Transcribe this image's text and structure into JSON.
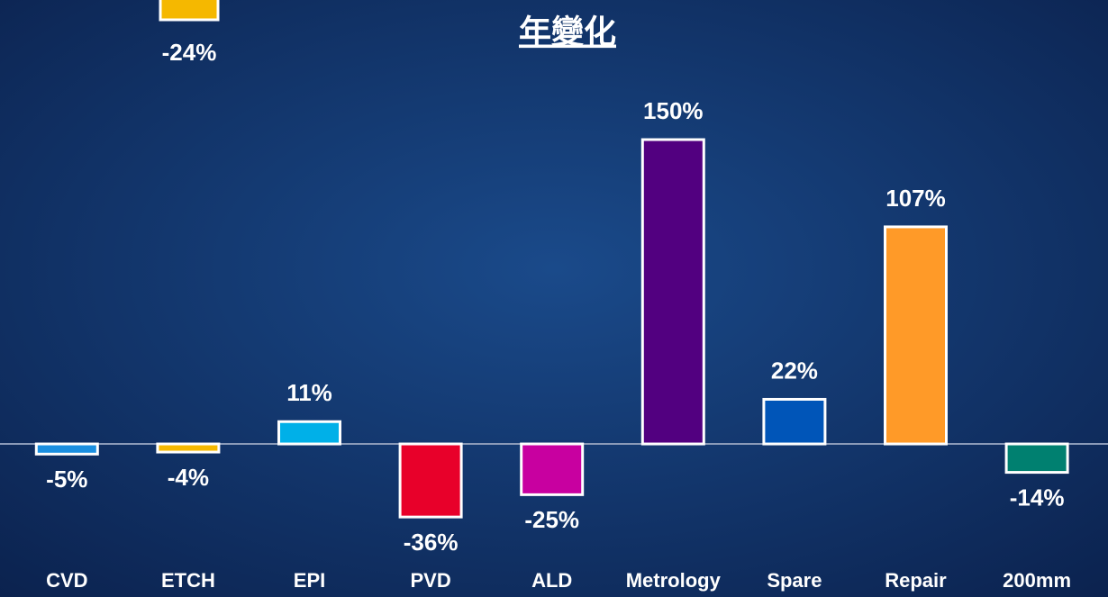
{
  "chart_data": {
    "type": "bar",
    "title": "年變化",
    "categories": [
      "CVD",
      "ETCH",
      "EPI",
      "PVD",
      "ALD",
      "Metrology",
      "Spare",
      "Repair",
      "200mm"
    ],
    "values": [
      -5,
      -4,
      11,
      -36,
      -25,
      150,
      22,
      107,
      -14
    ],
    "value_labels": [
      "-5%",
      "-4%",
      "11%",
      "-36%",
      "-25%",
      "150%",
      "22%",
      "107%",
      "-14%"
    ],
    "colors": [
      "#1a8fe0",
      "#f5b800",
      "#00b0e8",
      "#e8002a",
      "#c800a0",
      "#520080",
      "#0055b8",
      "#ff9a28",
      "#008070"
    ],
    "ylim": [
      -50,
      160
    ],
    "annotations": [
      "-24%"
    ]
  }
}
